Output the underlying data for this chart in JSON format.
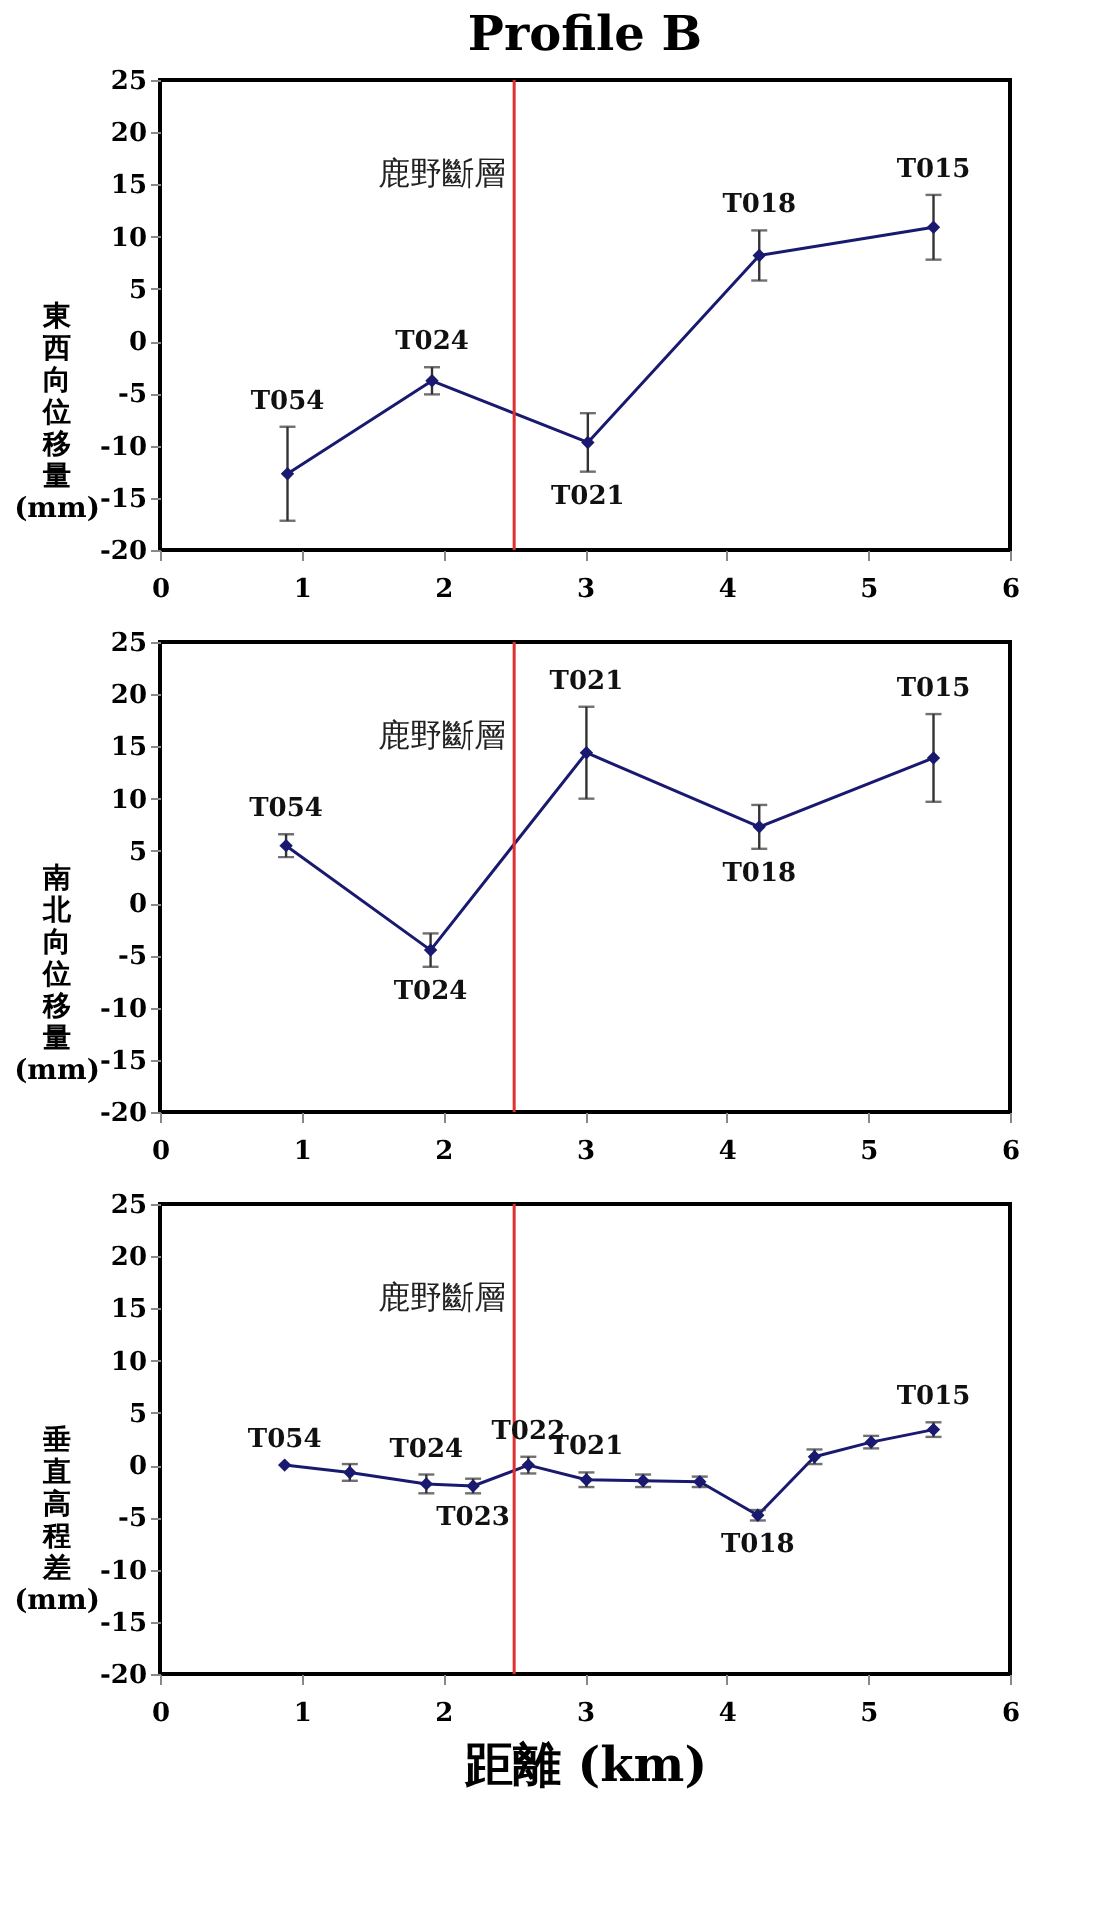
{
  "chart_data": [
    {
      "type": "line",
      "title": "Profile B",
      "ylabel": "東西向位移量(mm)",
      "x": [
        0.9,
        1.92,
        3.02,
        4.23,
        5.46
      ],
      "series": [
        {
          "color": "#191970",
          "values": [
            -12.7,
            -3.8,
            -9.7,
            8.2,
            10.9
          ],
          "errors": [
            4.5,
            1.3,
            2.8,
            2.4,
            3.1
          ]
        }
      ],
      "xlim": [
        0,
        6
      ],
      "ylim": [
        -20,
        25
      ],
      "xticks": [
        0,
        1,
        2,
        3,
        4,
        5,
        6
      ],
      "yticks": [
        -20,
        -15,
        -10,
        -5,
        0,
        5,
        10,
        15,
        20,
        25
      ],
      "marker": "diamond",
      "grid": false,
      "legend": false,
      "ref_lines": [
        {
          "axis": "x",
          "value": 2.5,
          "label": "鹿野斷層",
          "color": "#e03030"
        }
      ],
      "annotations": [
        {
          "text": "T054",
          "x": 0.9,
          "y": -12.7
        },
        {
          "text": "T024",
          "x": 1.92,
          "y": -3.8
        },
        {
          "text": "T021",
          "x": 3.02,
          "y": -9.7
        },
        {
          "text": "T018",
          "x": 4.23,
          "y": 8.2
        },
        {
          "text": "T015",
          "x": 5.46,
          "y": 10.9
        }
      ]
    },
    {
      "type": "line",
      "ylabel": "南北向位移量(mm)",
      "x": [
        0.89,
        1.91,
        3.01,
        4.23,
        5.46
      ],
      "series": [
        {
          "color": "#191970",
          "values": [
            5.5,
            -4.5,
            14.4,
            7.3,
            13.9
          ],
          "errors": [
            1.1,
            1.6,
            4.4,
            2.1,
            4.2
          ]
        }
      ],
      "xlim": [
        0,
        6
      ],
      "ylim": [
        -20,
        25
      ],
      "xticks": [
        0,
        1,
        2,
        3,
        4,
        5,
        6
      ],
      "yticks": [
        -20,
        -15,
        -10,
        -5,
        0,
        5,
        10,
        15,
        20,
        25
      ],
      "marker": "diamond",
      "grid": false,
      "legend": false,
      "ref_lines": [
        {
          "axis": "x",
          "value": 2.5,
          "label": "鹿野斷層",
          "color": "#e03030"
        }
      ],
      "annotations": [
        {
          "text": "T054",
          "x": 0.89,
          "y": 5.5
        },
        {
          "text": "T024",
          "x": 1.91,
          "y": -4.5
        },
        {
          "text": "T021",
          "x": 3.01,
          "y": 14.4
        },
        {
          "text": "T018",
          "x": 4.23,
          "y": 7.3
        },
        {
          "text": "T015",
          "x": 5.46,
          "y": 13.9
        }
      ]
    },
    {
      "type": "line",
      "ylabel": "垂直高程差(mm)",
      "xlabel": "距離 (km)",
      "x": [
        0.88,
        1.34,
        1.88,
        2.21,
        2.6,
        3.01,
        3.41,
        3.81,
        4.22,
        4.62,
        5.02,
        5.46
      ],
      "series": [
        {
          "color": "#191970",
          "values": [
            0.0,
            -0.7,
            -1.8,
            -2.0,
            0.0,
            -1.4,
            -1.5,
            -1.6,
            -4.8,
            0.8,
            2.2,
            3.4
          ],
          "errors": [
            null,
            0.8,
            0.9,
            0.7,
            0.8,
            0.7,
            0.6,
            0.5,
            0.5,
            0.7,
            0.6,
            0.7
          ]
        }
      ],
      "xlim": [
        0,
        6
      ],
      "ylim": [
        -20,
        25
      ],
      "xticks": [
        0,
        1,
        2,
        3,
        4,
        5,
        6
      ],
      "yticks": [
        -20,
        -15,
        -10,
        -5,
        0,
        5,
        10,
        15,
        20,
        25
      ],
      "marker": "diamond",
      "grid": false,
      "legend": false,
      "ref_lines": [
        {
          "axis": "x",
          "value": 2.5,
          "label": "鹿野斷層",
          "color": "#e03030"
        }
      ],
      "annotations": [
        {
          "text": "T054",
          "x": 0.88,
          "y": 0.0
        },
        {
          "text": "T024",
          "x": 1.88,
          "y": -1.8
        },
        {
          "text": "T023",
          "x": 2.21,
          "y": -2.0
        },
        {
          "text": "T022",
          "x": 2.6,
          "y": 0.0
        },
        {
          "text": "T021",
          "x": 3.01,
          "y": -1.4
        },
        {
          "text": "T018",
          "x": 4.22,
          "y": -4.8
        },
        {
          "text": "T015",
          "x": 5.46,
          "y": 3.4
        }
      ]
    }
  ]
}
